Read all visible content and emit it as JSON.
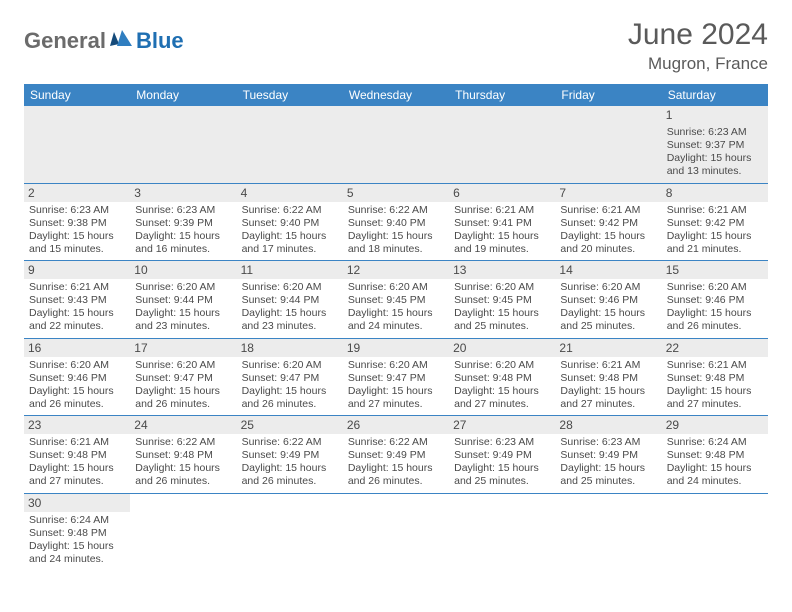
{
  "brand": {
    "gray": "General",
    "blue": "Blue"
  },
  "title": "June 2024",
  "location": "Mugron, France",
  "colors": {
    "header_bg": "#3b84c4",
    "header_text": "#ffffff",
    "border": "#3b84c4",
    "daynum_bg": "#ececec",
    "text": "#4a4a4a",
    "logo_gray": "#6b6b6b",
    "logo_blue": "#1f6fb2"
  },
  "weekdays": [
    "Sunday",
    "Monday",
    "Tuesday",
    "Wednesday",
    "Thursday",
    "Friday",
    "Saturday"
  ],
  "days": [
    {
      "n": "1",
      "sr": "Sunrise: 6:23 AM",
      "ss": "Sunset: 9:37 PM",
      "dl": "Daylight: 15 hours and 13 minutes."
    },
    {
      "n": "2",
      "sr": "Sunrise: 6:23 AM",
      "ss": "Sunset: 9:38 PM",
      "dl": "Daylight: 15 hours and 15 minutes."
    },
    {
      "n": "3",
      "sr": "Sunrise: 6:23 AM",
      "ss": "Sunset: 9:39 PM",
      "dl": "Daylight: 15 hours and 16 minutes."
    },
    {
      "n": "4",
      "sr": "Sunrise: 6:22 AM",
      "ss": "Sunset: 9:40 PM",
      "dl": "Daylight: 15 hours and 17 minutes."
    },
    {
      "n": "5",
      "sr": "Sunrise: 6:22 AM",
      "ss": "Sunset: 9:40 PM",
      "dl": "Daylight: 15 hours and 18 minutes."
    },
    {
      "n": "6",
      "sr": "Sunrise: 6:21 AM",
      "ss": "Sunset: 9:41 PM",
      "dl": "Daylight: 15 hours and 19 minutes."
    },
    {
      "n": "7",
      "sr": "Sunrise: 6:21 AM",
      "ss": "Sunset: 9:42 PM",
      "dl": "Daylight: 15 hours and 20 minutes."
    },
    {
      "n": "8",
      "sr": "Sunrise: 6:21 AM",
      "ss": "Sunset: 9:42 PM",
      "dl": "Daylight: 15 hours and 21 minutes."
    },
    {
      "n": "9",
      "sr": "Sunrise: 6:21 AM",
      "ss": "Sunset: 9:43 PM",
      "dl": "Daylight: 15 hours and 22 minutes."
    },
    {
      "n": "10",
      "sr": "Sunrise: 6:20 AM",
      "ss": "Sunset: 9:44 PM",
      "dl": "Daylight: 15 hours and 23 minutes."
    },
    {
      "n": "11",
      "sr": "Sunrise: 6:20 AM",
      "ss": "Sunset: 9:44 PM",
      "dl": "Daylight: 15 hours and 23 minutes."
    },
    {
      "n": "12",
      "sr": "Sunrise: 6:20 AM",
      "ss": "Sunset: 9:45 PM",
      "dl": "Daylight: 15 hours and 24 minutes."
    },
    {
      "n": "13",
      "sr": "Sunrise: 6:20 AM",
      "ss": "Sunset: 9:45 PM",
      "dl": "Daylight: 15 hours and 25 minutes."
    },
    {
      "n": "14",
      "sr": "Sunrise: 6:20 AM",
      "ss": "Sunset: 9:46 PM",
      "dl": "Daylight: 15 hours and 25 minutes."
    },
    {
      "n": "15",
      "sr": "Sunrise: 6:20 AM",
      "ss": "Sunset: 9:46 PM",
      "dl": "Daylight: 15 hours and 26 minutes."
    },
    {
      "n": "16",
      "sr": "Sunrise: 6:20 AM",
      "ss": "Sunset: 9:46 PM",
      "dl": "Daylight: 15 hours and 26 minutes."
    },
    {
      "n": "17",
      "sr": "Sunrise: 6:20 AM",
      "ss": "Sunset: 9:47 PM",
      "dl": "Daylight: 15 hours and 26 minutes."
    },
    {
      "n": "18",
      "sr": "Sunrise: 6:20 AM",
      "ss": "Sunset: 9:47 PM",
      "dl": "Daylight: 15 hours and 26 minutes."
    },
    {
      "n": "19",
      "sr": "Sunrise: 6:20 AM",
      "ss": "Sunset: 9:47 PM",
      "dl": "Daylight: 15 hours and 27 minutes."
    },
    {
      "n": "20",
      "sr": "Sunrise: 6:20 AM",
      "ss": "Sunset: 9:48 PM",
      "dl": "Daylight: 15 hours and 27 minutes."
    },
    {
      "n": "21",
      "sr": "Sunrise: 6:21 AM",
      "ss": "Sunset: 9:48 PM",
      "dl": "Daylight: 15 hours and 27 minutes."
    },
    {
      "n": "22",
      "sr": "Sunrise: 6:21 AM",
      "ss": "Sunset: 9:48 PM",
      "dl": "Daylight: 15 hours and 27 minutes."
    },
    {
      "n": "23",
      "sr": "Sunrise: 6:21 AM",
      "ss": "Sunset: 9:48 PM",
      "dl": "Daylight: 15 hours and 27 minutes."
    },
    {
      "n": "24",
      "sr": "Sunrise: 6:22 AM",
      "ss": "Sunset: 9:48 PM",
      "dl": "Daylight: 15 hours and 26 minutes."
    },
    {
      "n": "25",
      "sr": "Sunrise: 6:22 AM",
      "ss": "Sunset: 9:49 PM",
      "dl": "Daylight: 15 hours and 26 minutes."
    },
    {
      "n": "26",
      "sr": "Sunrise: 6:22 AM",
      "ss": "Sunset: 9:49 PM",
      "dl": "Daylight: 15 hours and 26 minutes."
    },
    {
      "n": "27",
      "sr": "Sunrise: 6:23 AM",
      "ss": "Sunset: 9:49 PM",
      "dl": "Daylight: 15 hours and 25 minutes."
    },
    {
      "n": "28",
      "sr": "Sunrise: 6:23 AM",
      "ss": "Sunset: 9:49 PM",
      "dl": "Daylight: 15 hours and 25 minutes."
    },
    {
      "n": "29",
      "sr": "Sunrise: 6:24 AM",
      "ss": "Sunset: 9:48 PM",
      "dl": "Daylight: 15 hours and 24 minutes."
    },
    {
      "n": "30",
      "sr": "Sunrise: 6:24 AM",
      "ss": "Sunset: 9:48 PM",
      "dl": "Daylight: 15 hours and 24 minutes."
    }
  ]
}
